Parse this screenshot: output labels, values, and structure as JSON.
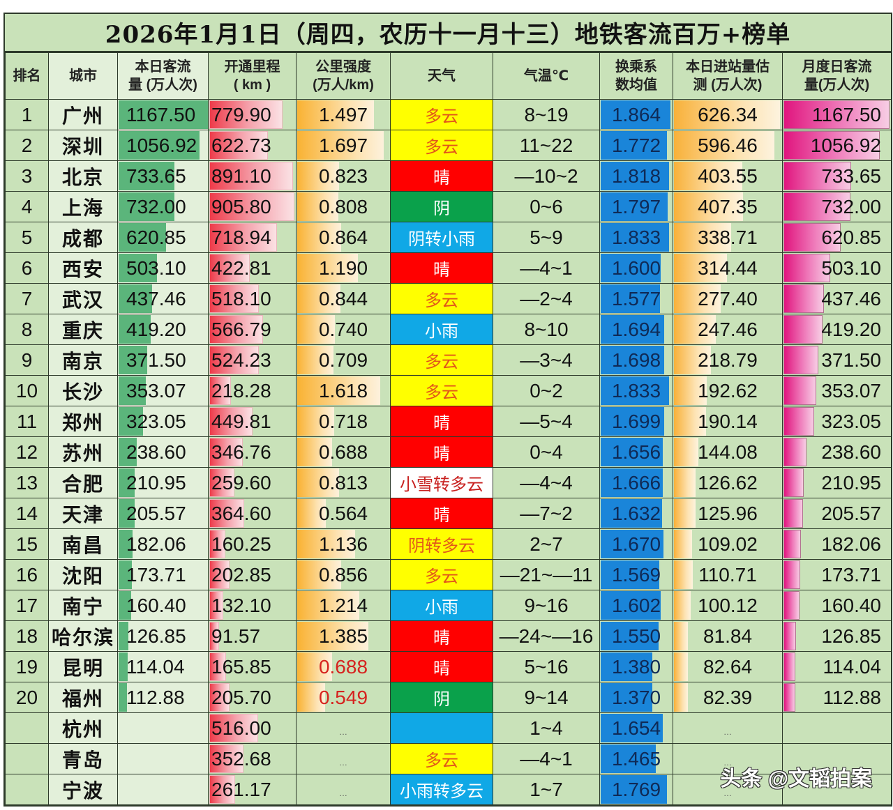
{
  "title": "2026年1月1日（周四，农历十一月十三）地铁客流百万+榜单",
  "headers": {
    "rank": "排名",
    "city": "城市",
    "pax_l1": "本日客流",
    "pax_l2": "量 (万人次)",
    "km_l1": "开通里程",
    "km_l2": "( km )",
    "inten_l1": "公里强度",
    "inten_l2": "(万人/km)",
    "weather": "天气",
    "temp": "气温℃",
    "xfer_l1": "换乘系",
    "xfer_l2": "数均值",
    "entry_l1": "本日进站量估",
    "entry_l2": "测 (万人次)",
    "month_l1": "月度日客流",
    "month_l2": "量(万人次)"
  },
  "weather_colors": {
    "多云": {
      "bg": "#ffff00",
      "fg": "#e2561a"
    },
    "晴": {
      "bg": "#ff0000",
      "fg": "#ffffff"
    },
    "阴": {
      "bg": "#0aa14b",
      "fg": "#ffffff"
    },
    "阴转小雨": {
      "bg": "#10a8e6",
      "fg": "#ffffff"
    },
    "小雨": {
      "bg": "#10a8e6",
      "fg": "#ffffff"
    },
    "小雪转多云": {
      "bg": "#ffffff",
      "fg": "#c8201f"
    },
    "阴转多云": {
      "bg": "#ffff00",
      "fg": "#e2561a"
    },
    "小雨转多云": {
      "bg": "#10a8e6",
      "fg": "#ffffff"
    },
    "": {
      "bg": "#10a8e6",
      "fg": "#ffffff"
    }
  },
  "rows": [
    {
      "rank": "1",
      "city": "广州",
      "pax": "1167.50",
      "km": "779.90",
      "inten": "1.497",
      "weather": "多云",
      "temp": "8~19",
      "xfer": "1.864",
      "entry": "626.34",
      "month": "1167.50"
    },
    {
      "rank": "2",
      "city": "深圳",
      "pax": "1056.92",
      "km": "622.73",
      "inten": "1.697",
      "weather": "多云",
      "temp": "11~22",
      "xfer": "1.772",
      "entry": "596.46",
      "month": "1056.92"
    },
    {
      "rank": "3",
      "city": "北京",
      "pax": "733.65",
      "km": "891.10",
      "inten": "0.823",
      "weather": "晴",
      "temp": "—10~2",
      "xfer": "1.818",
      "entry": "403.55",
      "month": "733.65"
    },
    {
      "rank": "4",
      "city": "上海",
      "pax": "732.00",
      "km": "905.80",
      "inten": "0.808",
      "weather": "阴",
      "temp": "0~6",
      "xfer": "1.797",
      "entry": "407.35",
      "month": "732.00"
    },
    {
      "rank": "5",
      "city": "成都",
      "pax": "620.85",
      "km": "718.94",
      "inten": "0.864",
      "weather": "阴转小雨",
      "temp": "5~9",
      "xfer": "1.833",
      "entry": "338.71",
      "month": "620.85"
    },
    {
      "rank": "6",
      "city": "西安",
      "pax": "503.10",
      "km": "422.81",
      "inten": "1.190",
      "weather": "晴",
      "temp": "—4~1",
      "xfer": "1.600",
      "entry": "314.44",
      "month": "503.10"
    },
    {
      "rank": "7",
      "city": "武汉",
      "pax": "437.46",
      "km": "518.10",
      "inten": "0.844",
      "weather": "多云",
      "temp": "—2~4",
      "xfer": "1.577",
      "entry": "277.40",
      "month": "437.46"
    },
    {
      "rank": "8",
      "city": "重庆",
      "pax": "419.20",
      "km": "566.79",
      "inten": "0.740",
      "weather": "小雨",
      "temp": "8~10",
      "xfer": "1.694",
      "entry": "247.46",
      "month": "419.20"
    },
    {
      "rank": "9",
      "city": "南京",
      "pax": "371.50",
      "km": "524.23",
      "inten": "0.709",
      "weather": "多云",
      "temp": "—3~4",
      "xfer": "1.698",
      "entry": "218.79",
      "month": "371.50"
    },
    {
      "rank": "10",
      "city": "长沙",
      "pax": "353.07",
      "km": "218.28",
      "inten": "1.618",
      "weather": "多云",
      "temp": "0~2",
      "xfer": "1.833",
      "entry": "192.62",
      "month": "353.07"
    },
    {
      "rank": "11",
      "city": "郑州",
      "pax": "323.05",
      "km": "449.81",
      "inten": "0.718",
      "weather": "晴",
      "temp": "—5~4",
      "xfer": "1.699",
      "entry": "190.14",
      "month": "323.05"
    },
    {
      "rank": "12",
      "city": "苏州",
      "pax": "238.60",
      "km": "346.76",
      "inten": "0.688",
      "weather": "晴",
      "temp": "0~4",
      "xfer": "1.656",
      "entry": "144.08",
      "month": "238.60"
    },
    {
      "rank": "13",
      "city": "合肥",
      "pax": "210.95",
      "km": "259.60",
      "inten": "0.813",
      "weather": "小雪转多云",
      "temp": "—4~4",
      "xfer": "1.666",
      "entry": "126.62",
      "month": "210.95"
    },
    {
      "rank": "14",
      "city": "天津",
      "pax": "205.57",
      "km": "364.60",
      "inten": "0.564",
      "weather": "晴",
      "temp": "—7~2",
      "xfer": "1.632",
      "entry": "125.96",
      "month": "205.57"
    },
    {
      "rank": "15",
      "city": "南昌",
      "pax": "182.06",
      "km": "160.25",
      "inten": "1.136",
      "weather": "阴转多云",
      "temp": "2~7",
      "xfer": "1.670",
      "entry": "109.02",
      "month": "182.06"
    },
    {
      "rank": "16",
      "city": "沈阳",
      "pax": "173.71",
      "km": "202.85",
      "inten": "0.856",
      "weather": "多云",
      "temp": "—21~—11",
      "xfer": "1.569",
      "entry": "110.71",
      "month": "173.71"
    },
    {
      "rank": "17",
      "city": "南宁",
      "pax": "160.40",
      "km": "132.10",
      "inten": "1.214",
      "weather": "小雨",
      "temp": "9~16",
      "xfer": "1.602",
      "entry": "100.12",
      "month": "160.40"
    },
    {
      "rank": "18",
      "city": "哈尔滨",
      "pax": "126.85",
      "km": "91.57",
      "inten": "1.385",
      "weather": "晴",
      "temp": "—24~—16",
      "xfer": "1.550",
      "entry": "81.84",
      "month": "126.85"
    },
    {
      "rank": "19",
      "city": "昆明",
      "pax": "114.04",
      "km": "165.85",
      "inten": "0.688",
      "inten_red": true,
      "weather": "晴",
      "temp": "5~16",
      "xfer": "1.380",
      "entry": "82.64",
      "month": "114.04"
    },
    {
      "rank": "20",
      "city": "福州",
      "pax": "112.88",
      "km": "205.70",
      "inten": "0.549",
      "inten_red": true,
      "weather": "阴",
      "temp": "9~14",
      "xfer": "1.370",
      "entry": "82.39",
      "month": "112.88"
    },
    {
      "rank": "",
      "city": "杭州",
      "pax": "",
      "km": "516.00",
      "inten": "…",
      "weather": "",
      "temp": "1~4",
      "xfer": "1.654",
      "entry": "…",
      "month": ""
    },
    {
      "rank": "",
      "city": "青岛",
      "pax": "",
      "km": "352.68",
      "inten": "…",
      "weather": "多云",
      "temp": "—4~1",
      "xfer": "1.465",
      "entry": "…",
      "month": ""
    },
    {
      "rank": "",
      "city": "宁波",
      "pax": "",
      "km": "261.17",
      "inten": "…",
      "weather": "小雨转多云",
      "temp": "1~7",
      "xfer": "1.769",
      "entry": "…",
      "month": ""
    }
  ],
  "watermark": "头条 @文韬拍案",
  "chart_data": {
    "type": "table",
    "title": "2026年1月1日（周四，农历十一月十三）地铁客流百万+榜单",
    "columns": [
      "排名",
      "城市",
      "本日客流量(万人次)",
      "开通里程(km)",
      "公里强度(万人/km)",
      "天气",
      "气温℃",
      "换乘系数均值",
      "本日进站量估测(万人次)",
      "月度日客流量(万人次)"
    ],
    "categories": [
      "广州",
      "深圳",
      "北京",
      "上海",
      "成都",
      "西安",
      "武汉",
      "重庆",
      "南京",
      "长沙",
      "郑州",
      "苏州",
      "合肥",
      "天津",
      "南昌",
      "沈阳",
      "南宁",
      "哈尔滨",
      "昆明",
      "福州",
      "杭州",
      "青岛",
      "宁波"
    ],
    "series": [
      {
        "name": "本日客流量(万人次)",
        "values": [
          1167.5,
          1056.92,
          733.65,
          732.0,
          620.85,
          503.1,
          437.46,
          419.2,
          371.5,
          353.07,
          323.05,
          238.6,
          210.95,
          205.57,
          182.06,
          173.71,
          160.4,
          126.85,
          114.04,
          112.88,
          null,
          null,
          null
        ]
      },
      {
        "name": "开通里程(km)",
        "values": [
          779.9,
          622.73,
          891.1,
          905.8,
          718.94,
          422.81,
          518.1,
          566.79,
          524.23,
          218.28,
          449.81,
          346.76,
          259.6,
          364.6,
          160.25,
          202.85,
          132.1,
          91.57,
          165.85,
          205.7,
          516.0,
          352.68,
          261.17
        ]
      },
      {
        "name": "公里强度(万人/km)",
        "values": [
          1.497,
          1.697,
          0.823,
          0.808,
          0.864,
          1.19,
          0.844,
          0.74,
          0.709,
          1.618,
          0.718,
          0.688,
          0.813,
          0.564,
          1.136,
          0.856,
          1.214,
          1.385,
          0.688,
          0.549,
          null,
          null,
          null
        ]
      },
      {
        "name": "换乘系数均值",
        "values": [
          1.864,
          1.772,
          1.818,
          1.797,
          1.833,
          1.6,
          1.577,
          1.694,
          1.698,
          1.833,
          1.699,
          1.656,
          1.666,
          1.632,
          1.67,
          1.569,
          1.602,
          1.55,
          1.38,
          1.37,
          1.654,
          1.465,
          1.769
        ]
      },
      {
        "name": "本日进站量估测(万人次)",
        "values": [
          626.34,
          596.46,
          403.55,
          407.35,
          338.71,
          314.44,
          277.4,
          247.46,
          218.79,
          192.62,
          190.14,
          144.08,
          126.62,
          125.96,
          109.02,
          110.71,
          100.12,
          81.84,
          82.64,
          82.39,
          null,
          null,
          null
        ]
      },
      {
        "name": "月度日客流量(万人次)",
        "values": [
          1167.5,
          1056.92,
          733.65,
          732.0,
          620.85,
          503.1,
          437.46,
          419.2,
          371.5,
          353.07,
          323.05,
          238.6,
          210.95,
          205.57,
          182.06,
          173.71,
          160.4,
          126.85,
          114.04,
          112.88,
          null,
          null,
          null
        ]
      }
    ],
    "weather": [
      "多云",
      "多云",
      "晴",
      "阴",
      "阴转小雨",
      "晴",
      "多云",
      "小雨",
      "多云",
      "多云",
      "晴",
      "晴",
      "小雪转多云",
      "晴",
      "阴转多云",
      "多云",
      "小雨",
      "晴",
      "晴",
      "阴",
      "",
      "多云",
      "小雨转多云"
    ],
    "temperature": [
      "8~19",
      "11~22",
      "-10~2",
      "0~6",
      "5~9",
      "-4~1",
      "-2~4",
      "8~10",
      "-3~4",
      "0~2",
      "-5~4",
      "0~4",
      "-4~4",
      "-7~2",
      "2~7",
      "-21~-11",
      "9~16",
      "-24~-16",
      "5~16",
      "9~14",
      "1~4",
      "-4~1",
      "1~7"
    ]
  }
}
